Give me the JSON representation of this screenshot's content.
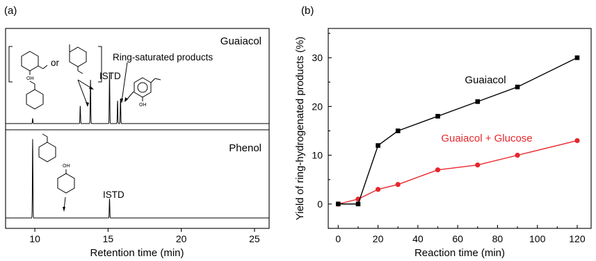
{
  "panels": {
    "a": {
      "label": "(a)"
    },
    "b": {
      "label": "(b)"
    }
  },
  "chart_data": [
    {
      "type": "line",
      "panel": "(a)",
      "xlabel": "Retention time (min)",
      "ylabel": "",
      "xlim": [
        8,
        26
      ],
      "xticks": [
        10,
        15,
        20,
        25
      ],
      "subplots": [
        {
          "name": "Guaiacol",
          "peaks": [
            {
              "x": 9.85,
              "height": 0.05
            },
            {
              "x": 13.1,
              "height": 0.17
            },
            {
              "x": 13.8,
              "height": 0.42
            },
            {
              "x": 15.1,
              "height": 0.48
            },
            {
              "x": 15.65,
              "height": 0.22
            },
            {
              "x": 15.85,
              "height": 0.24
            }
          ],
          "annotations": {
            "ring_products": "Ring-saturated products",
            "istd": "ISTD",
            "or": "or",
            "oh": "OH"
          }
        },
        {
          "name": "Phenol",
          "peaks": [
            {
              "x": 9.85,
              "height": 0.98
            },
            {
              "x": 15.1,
              "height": 0.24
            }
          ],
          "annotations": {
            "istd": "ISTD",
            "oh": "OH"
          }
        }
      ]
    },
    {
      "type": "line",
      "panel": "(b)",
      "xlabel": "Reaction time (min)",
      "ylabel": "Yield of ring-hydrogenated products (%)",
      "xlim": [
        -5,
        127
      ],
      "ylim": [
        -5,
        36
      ],
      "xticks": [
        0,
        20,
        40,
        60,
        80,
        100,
        120
      ],
      "yticks": [
        0,
        10,
        20,
        30
      ],
      "series": [
        {
          "name": "Guaiacol",
          "color": "#000000",
          "marker": "square",
          "x": [
            0,
            10,
            20,
            30,
            50,
            70,
            90,
            120
          ],
          "y": [
            0,
            0,
            12,
            15,
            18,
            21,
            24,
            30
          ]
        },
        {
          "name": "Guaiacol + Glucose",
          "color": "#e8262c",
          "marker": "circle",
          "x": [
            0,
            10,
            20,
            30,
            50,
            70,
            90,
            120
          ],
          "y": [
            0,
            1,
            3,
            4,
            7,
            8,
            10,
            13
          ]
        }
      ]
    }
  ]
}
